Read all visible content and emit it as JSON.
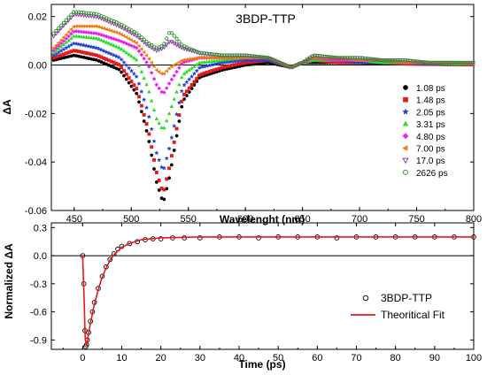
{
  "chart_data": [
    {
      "type": "scatter",
      "title": "3BDP-TTP",
      "xlabel": "Wavelenght (nm)",
      "ylabel": "ΔA",
      "xlim": [
        430,
        800
      ],
      "ylim": [
        -0.06,
        0.025
      ],
      "xticks": [
        "450",
        "500",
        "550",
        "600",
        "650",
        "700",
        "750",
        "800"
      ],
      "yticks": [
        "0.02",
        "0.00",
        "-0.02",
        "-0.04",
        "-0.06"
      ],
      "zero_line": 0,
      "legend_position": "right",
      "series": [
        {
          "name": "1.08 ps",
          "color": "#000000",
          "marker": "circle-filled",
          "x": [
            432,
            450,
            470,
            490,
            505,
            515,
            522,
            528,
            534,
            545,
            560,
            580,
            600,
            620,
            640,
            650,
            660,
            680,
            700,
            720,
            740,
            760,
            780,
            800
          ],
          "y": [
            0.002,
            0.004,
            0.002,
            -0.002,
            -0.012,
            -0.03,
            -0.048,
            -0.057,
            -0.045,
            -0.015,
            -0.005,
            -0.002,
            0.0,
            0.001,
            -0.001,
            0.001,
            0.001,
            0.001,
            0.001,
            0.0005,
            0.0005,
            0.0003,
            0.0002,
            0.0002
          ]
        },
        {
          "name": "1.48 ps",
          "color": "#e8191b",
          "marker": "square-filled",
          "x": [
            432,
            450,
            470,
            490,
            505,
            515,
            522,
            528,
            534,
            545,
            560,
            580,
            600,
            620,
            640,
            650,
            660,
            680,
            700,
            720,
            740,
            760,
            780,
            800
          ],
          "y": [
            0.003,
            0.006,
            0.004,
            0.0,
            -0.01,
            -0.027,
            -0.044,
            -0.053,
            -0.041,
            -0.013,
            -0.004,
            -0.001,
            0.001,
            0.002,
            -0.001,
            0.001,
            0.002,
            0.001,
            0.001,
            0.001,
            0.0005,
            0.0004,
            0.0003,
            0.0002
          ]
        },
        {
          "name": "2.05 ps",
          "color": "#1f3fd6",
          "marker": "star-filled",
          "x": [
            432,
            450,
            470,
            490,
            505,
            515,
            522,
            528,
            534,
            545,
            560,
            580,
            600,
            620,
            640,
            650,
            660,
            680,
            700,
            720,
            740,
            760,
            780,
            800
          ],
          "y": [
            0.004,
            0.009,
            0.007,
            0.003,
            -0.005,
            -0.02,
            -0.036,
            -0.044,
            -0.033,
            -0.009,
            -0.001,
            0.001,
            0.002,
            0.002,
            -0.001,
            0.001,
            0.002,
            0.002,
            0.001,
            0.001,
            0.001,
            0.0005,
            0.0004,
            0.0003
          ]
        },
        {
          "name": "3.31 ps",
          "color": "#22e022",
          "marker": "triangle-up-filled",
          "x": [
            432,
            450,
            470,
            490,
            505,
            515,
            522,
            528,
            534,
            545,
            560,
            580,
            600,
            620,
            640,
            650,
            660,
            680,
            700,
            720,
            740,
            760,
            780,
            800
          ],
          "y": [
            0.005,
            0.012,
            0.011,
            0.007,
            0.002,
            -0.01,
            -0.022,
            -0.027,
            -0.019,
            -0.004,
            0.001,
            0.002,
            0.003,
            0.003,
            -0.001,
            0.001,
            0.002,
            0.002,
            0.002,
            0.001,
            0.001,
            0.001,
            0.0005,
            0.0004
          ]
        },
        {
          "name": "4.80 ps",
          "color": "#ee1fee",
          "marker": "diamond-filled",
          "x": [
            432,
            450,
            470,
            490,
            505,
            515,
            522,
            528,
            534,
            545,
            560,
            580,
            600,
            620,
            640,
            650,
            660,
            680,
            700,
            720,
            740,
            760,
            780,
            800
          ],
          "y": [
            0.006,
            0.014,
            0.013,
            0.01,
            0.007,
            0.0,
            -0.008,
            -0.012,
            -0.007,
            0.001,
            0.003,
            0.003,
            0.003,
            0.003,
            -0.001,
            0.001,
            0.003,
            0.002,
            0.002,
            0.002,
            0.001,
            0.001,
            0.001,
            0.0005
          ]
        },
        {
          "name": "7.00 ps",
          "color": "#f07a10",
          "marker": "triangle-left-filled",
          "x": [
            432,
            450,
            470,
            490,
            505,
            515,
            522,
            528,
            534,
            545,
            560,
            580,
            600,
            620,
            640,
            650,
            660,
            680,
            700,
            720,
            740,
            760,
            780,
            800
          ],
          "y": [
            0.007,
            0.016,
            0.016,
            0.013,
            0.009,
            0.003,
            -0.002,
            -0.004,
            -0.001,
            0.002,
            0.003,
            0.003,
            0.003,
            0.003,
            -0.001,
            0.001,
            0.003,
            0.003,
            0.002,
            0.002,
            0.001,
            0.001,
            0.001,
            0.0005
          ]
        },
        {
          "name": "17.0 ps",
          "color": "#8a2aa8",
          "marker": "triangle-down-open",
          "x": [
            432,
            450,
            470,
            490,
            505,
            515,
            522,
            528,
            534,
            545,
            560,
            580,
            600,
            620,
            640,
            650,
            660,
            680,
            700,
            720,
            740,
            760,
            780,
            800
          ],
          "y": [
            0.012,
            0.021,
            0.02,
            0.016,
            0.012,
            0.008,
            0.006,
            0.007,
            0.01,
            0.007,
            0.005,
            0.004,
            0.004,
            0.003,
            -0.001,
            0.001,
            0.004,
            0.003,
            0.003,
            0.002,
            0.002,
            0.001,
            0.001,
            0.001
          ]
        },
        {
          "name": "2626 ps",
          "color": "#2a9a2a",
          "marker": "circle-open",
          "x": [
            432,
            450,
            470,
            490,
            505,
            515,
            522,
            528,
            534,
            545,
            560,
            580,
            600,
            620,
            640,
            650,
            660,
            680,
            700,
            720,
            740,
            760,
            780,
            800
          ],
          "y": [
            0.013,
            0.022,
            0.021,
            0.017,
            0.013,
            0.009,
            0.007,
            0.008,
            0.014,
            0.008,
            0.005,
            0.004,
            0.004,
            0.003,
            -0.001,
            0.001,
            0.004,
            0.003,
            0.003,
            0.002,
            0.002,
            0.001,
            0.001,
            0.001
          ]
        }
      ]
    },
    {
      "type": "scatter",
      "xlabel": "Time (ps)",
      "ylabel": "Normalized ΔA",
      "xlim": [
        -8,
        100
      ],
      "ylim": [
        -1.0,
        0.35
      ],
      "xticks": [
        "0",
        "10",
        "20",
        "30",
        "40",
        "50",
        "60",
        "70",
        "80",
        "90",
        "100"
      ],
      "yticks": [
        "0.3",
        "0.0",
        "-0.3",
        "-0.6",
        "-0.9"
      ],
      "zero_line": 0,
      "legend_position": "bottom-right",
      "series": [
        {
          "name": "3BDP-TTP",
          "color": "#000000",
          "marker": "circle-open",
          "x": [
            0,
            0.3,
            0.6,
            0.8,
            1.0,
            1.2,
            1.5,
            2,
            2.5,
            3,
            4,
            5,
            6,
            7,
            8,
            9,
            10,
            12,
            14,
            16,
            18,
            20,
            23,
            26,
            30,
            35,
            40,
            45,
            50,
            55,
            60,
            65,
            70,
            75,
            80,
            85,
            90,
            95,
            100
          ],
          "y": [
            0.0,
            -0.3,
            -0.8,
            -0.97,
            -0.95,
            -0.9,
            -0.82,
            -0.7,
            -0.6,
            -0.5,
            -0.35,
            -0.22,
            -0.12,
            -0.04,
            0.02,
            0.07,
            0.1,
            0.13,
            0.15,
            0.17,
            0.18,
            0.18,
            0.19,
            0.19,
            0.19,
            0.2,
            0.2,
            0.19,
            0.2,
            0.2,
            0.2,
            0.19,
            0.2,
            0.2,
            0.2,
            0.2,
            0.2,
            0.2,
            0.2
          ]
        },
        {
          "name": "Theoritical Fit",
          "color": "#e8191b",
          "marker": "line",
          "x": [
            0,
            0.3,
            0.6,
            0.8,
            1.0,
            1.5,
            2,
            3,
            4,
            5,
            6,
            7,
            8,
            10,
            12,
            15,
            20,
            25,
            30,
            40,
            50,
            60,
            70,
            80,
            90,
            100
          ],
          "y": [
            0.0,
            -0.35,
            -0.85,
            -0.98,
            -0.96,
            -0.84,
            -0.72,
            -0.52,
            -0.36,
            -0.23,
            -0.13,
            -0.05,
            0.01,
            0.09,
            0.13,
            0.17,
            0.19,
            0.195,
            0.2,
            0.2,
            0.2,
            0.2,
            0.2,
            0.2,
            0.2,
            0.2
          ]
        }
      ]
    }
  ]
}
